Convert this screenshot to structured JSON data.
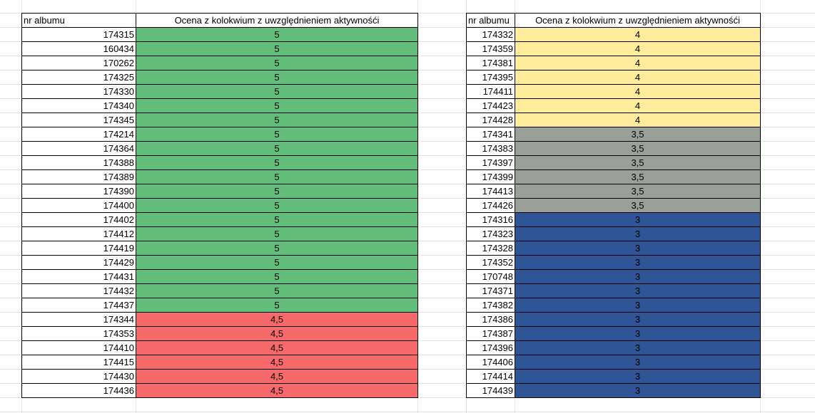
{
  "colors": {
    "5": "#63be7b",
    "4,5": "#f8696b",
    "4": "#ffeb9c",
    "3,5": "#9aa099",
    "3": "#2f5597"
  },
  "left_table": {
    "header_album": "nr albumu",
    "header_grade": "Ocena z kolokwium z uwzględnieniem aktywnośći",
    "rows": [
      {
        "album": "174315",
        "grade": "5"
      },
      {
        "album": "160434",
        "grade": "5"
      },
      {
        "album": "170262",
        "grade": "5"
      },
      {
        "album": "174325",
        "grade": "5"
      },
      {
        "album": "174330",
        "grade": "5"
      },
      {
        "album": "174340",
        "grade": "5"
      },
      {
        "album": "174345",
        "grade": "5"
      },
      {
        "album": "174214",
        "grade": "5"
      },
      {
        "album": "174364",
        "grade": "5"
      },
      {
        "album": "174388",
        "grade": "5"
      },
      {
        "album": "174389",
        "grade": "5"
      },
      {
        "album": "174390",
        "grade": "5"
      },
      {
        "album": "174400",
        "grade": "5"
      },
      {
        "album": "174402",
        "grade": "5"
      },
      {
        "album": "174412",
        "grade": "5"
      },
      {
        "album": "174419",
        "grade": "5"
      },
      {
        "album": "174429",
        "grade": "5"
      },
      {
        "album": "174431",
        "grade": "5"
      },
      {
        "album": "174432",
        "grade": "5"
      },
      {
        "album": "174437",
        "grade": "5"
      },
      {
        "album": "174344",
        "grade": "4,5"
      },
      {
        "album": "174353",
        "grade": "4,5"
      },
      {
        "album": "174410",
        "grade": "4,5"
      },
      {
        "album": "174415",
        "grade": "4,5"
      },
      {
        "album": "174430",
        "grade": "4,5"
      },
      {
        "album": "174436",
        "grade": "4,5"
      }
    ]
  },
  "right_table": {
    "header_album": "nr albumu",
    "header_grade": "Ocena z kolokwium z uwzględnieniem aktywnośći",
    "rows": [
      {
        "album": "174332",
        "grade": "4"
      },
      {
        "album": "174359",
        "grade": "4"
      },
      {
        "album": "174381",
        "grade": "4"
      },
      {
        "album": "174395",
        "grade": "4"
      },
      {
        "album": "174411",
        "grade": "4"
      },
      {
        "album": "174423",
        "grade": "4"
      },
      {
        "album": "174428",
        "grade": "4"
      },
      {
        "album": "174341",
        "grade": "3,5"
      },
      {
        "album": "174383",
        "grade": "3,5"
      },
      {
        "album": "174397",
        "grade": "3,5"
      },
      {
        "album": "174399",
        "grade": "3,5"
      },
      {
        "album": "174413",
        "grade": "3,5"
      },
      {
        "album": "174426",
        "grade": "3,5"
      },
      {
        "album": "174316",
        "grade": "3"
      },
      {
        "album": "174323",
        "grade": "3"
      },
      {
        "album": "174328",
        "grade": "3"
      },
      {
        "album": "174352",
        "grade": "3"
      },
      {
        "album": "170748",
        "grade": "3"
      },
      {
        "album": "174371",
        "grade": "3"
      },
      {
        "album": "174382",
        "grade": "3"
      },
      {
        "album": "174386",
        "grade": "3"
      },
      {
        "album": "174387",
        "grade": "3"
      },
      {
        "album": "174396",
        "grade": "3"
      },
      {
        "album": "174406",
        "grade": "3"
      },
      {
        "album": "174414",
        "grade": "3"
      },
      {
        "album": "174439",
        "grade": "3"
      }
    ]
  }
}
